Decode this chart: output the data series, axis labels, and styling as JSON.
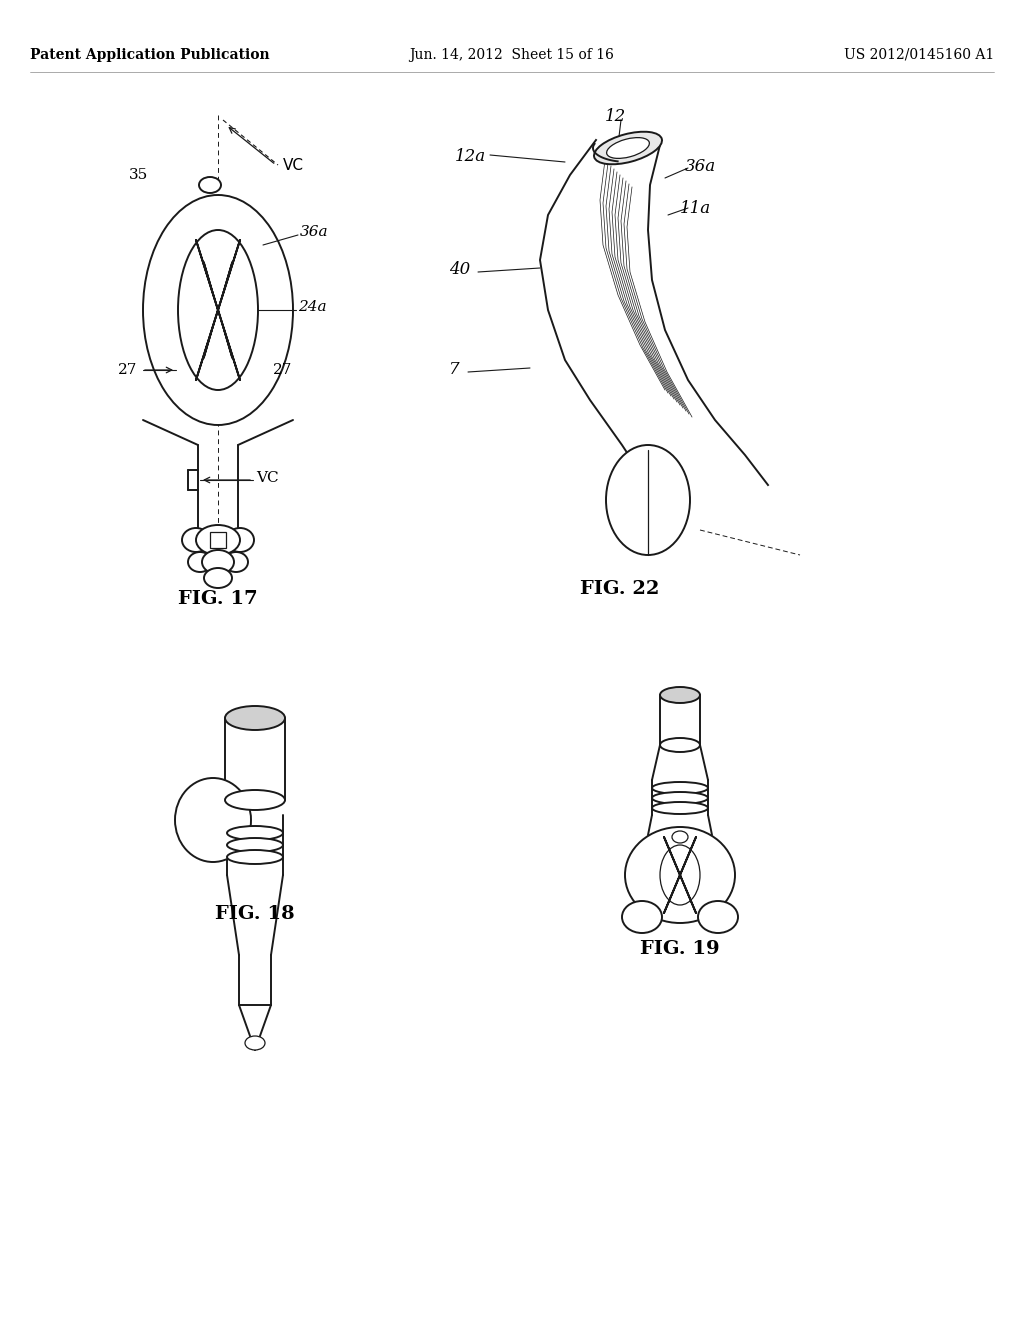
{
  "background_color": "#ffffff",
  "header_text": "Patent Application Publication",
  "header_date": "Jun. 14, 2012  Sheet 15 of 16",
  "header_patent": "US 2012/0145160 A1",
  "fig17_label": "FIG. 17",
  "fig18_label": "FIG. 18",
  "fig19_label": "FIG. 19",
  "fig22_label": "FIG. 22",
  "line_color": "#1a1a1a",
  "text_color": "#000000"
}
